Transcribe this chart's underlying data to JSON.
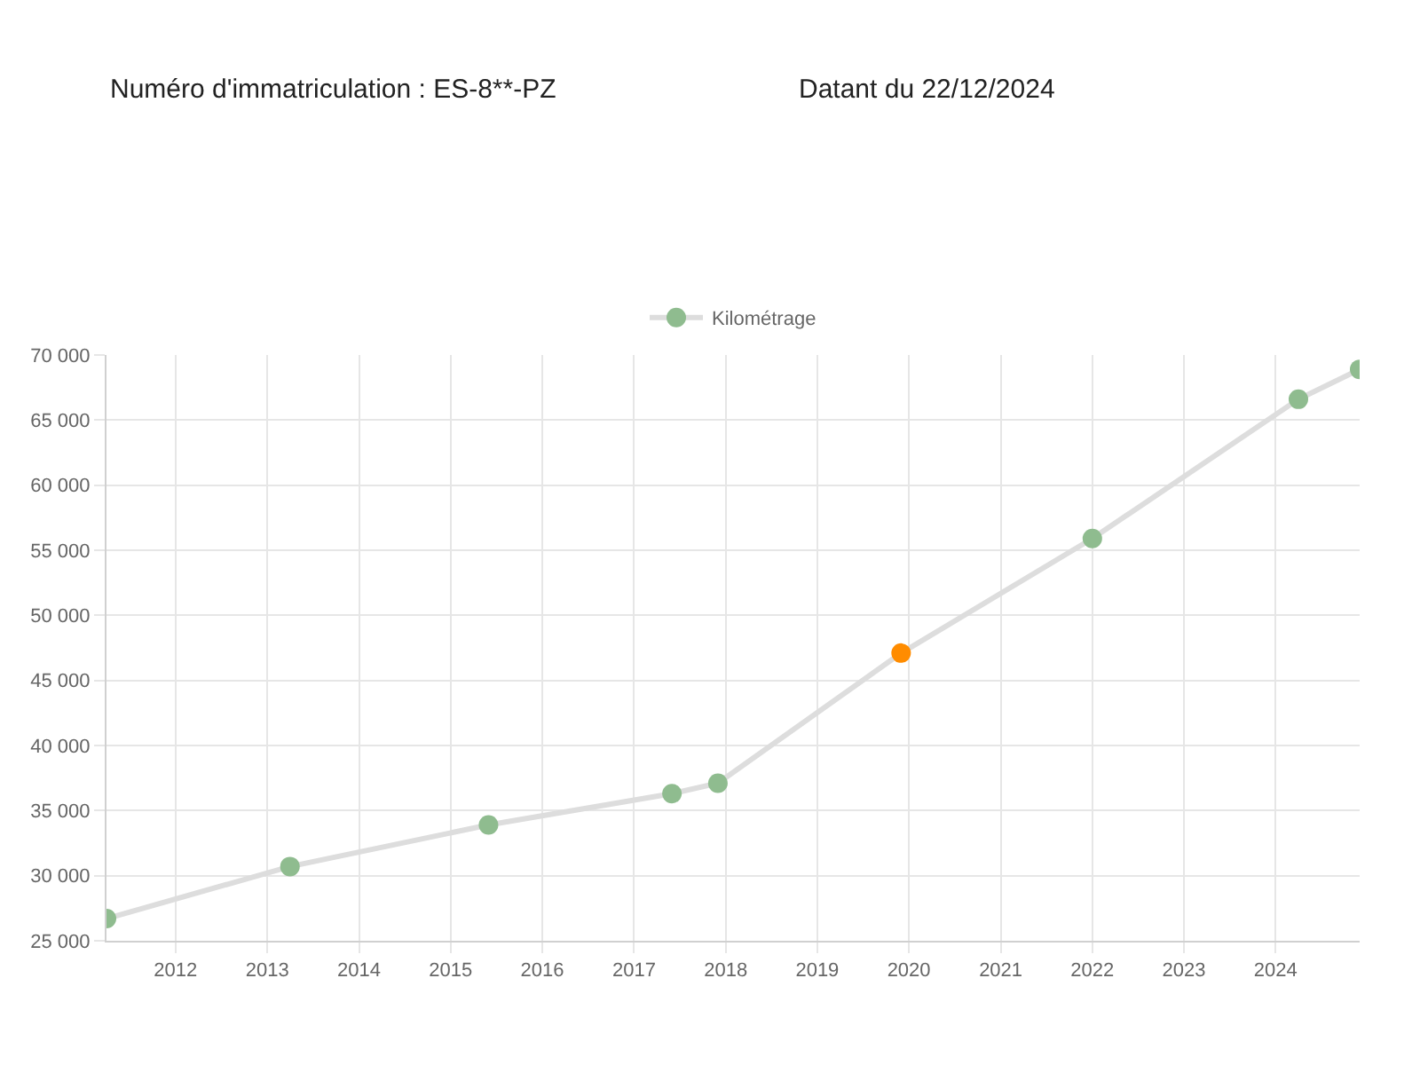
{
  "chart_data": {
    "type": "line",
    "title": "Numéro d'immatriculation : ES-8**-PZ",
    "subtitle": "Datant du 22/12/2024",
    "x": [
      "2011-04",
      "2013-04",
      "2015-06",
      "2017-06",
      "2017-12",
      "2019-12",
      "2022-01",
      "2024-04",
      "2024-12"
    ],
    "series": [
      {
        "name": "Kilométrage",
        "color": "#dddddd",
        "colors": [
          "#8fbc8f",
          "#8fbc8f",
          "#8fbc8f",
          "#8fbc8f",
          "#8fbc8f",
          "#ff8c00",
          "#8fbc8f",
          "#8fbc8f",
          "#8fbc8f"
        ],
        "values": [
          26700,
          30700,
          33900,
          36300,
          37100,
          47100,
          55900,
          66600,
          68900
        ]
      }
    ],
    "xlim": [
      "2011-04",
      "2024-12"
    ],
    "xticks": [
      {
        "value": "2012",
        "label": "2012"
      },
      {
        "value": "2013",
        "label": "2013"
      },
      {
        "value": "2014",
        "label": "2014"
      },
      {
        "value": "2015",
        "label": "2015"
      },
      {
        "value": "2016",
        "label": "2016"
      },
      {
        "value": "2017",
        "label": "2017"
      },
      {
        "value": "2018",
        "label": "2018"
      },
      {
        "value": "2019",
        "label": "2019"
      },
      {
        "value": "2020",
        "label": "2020"
      },
      {
        "value": "2021",
        "label": "2021"
      },
      {
        "value": "2022",
        "label": "2022"
      },
      {
        "value": "2023",
        "label": "2023"
      },
      {
        "value": "2024",
        "label": "2024"
      }
    ],
    "ylim": [
      25000,
      70000
    ],
    "yticks": [
      {
        "value": 25000,
        "label": "25 000"
      },
      {
        "value": 30000,
        "label": "30 000"
      },
      {
        "value": 35000,
        "label": "35 000"
      },
      {
        "value": 40000,
        "label": "40 000"
      },
      {
        "value": 45000,
        "label": "45 000"
      },
      {
        "value": 50000,
        "label": "50 000"
      },
      {
        "value": 55000,
        "label": "55 000"
      },
      {
        "value": 60000,
        "label": "60 000"
      },
      {
        "value": 65000,
        "label": "65 000"
      },
      {
        "value": 70000,
        "label": "70 000"
      }
    ],
    "grid": true,
    "legend": "top",
    "marker": "circle",
    "line_style": "solid"
  }
}
